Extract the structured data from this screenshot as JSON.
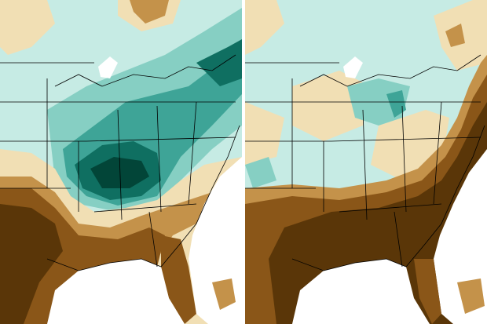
{
  "panels": [
    {
      "id": "left",
      "pattern": "wet-north-dry-south"
    },
    {
      "id": "right",
      "pattern": "dry-southeast"
    }
  ],
  "color_scale": {
    "very_dry": "#5a3608",
    "dry": "#8a5618",
    "moderately_dry": "#c4924a",
    "slightly_dry": "#f1dfb4",
    "neutral": "#ffffff",
    "slightly_wet": "#c6ebe4",
    "moderately_wet": "#86cfc3",
    "wet": "#3ea497",
    "very_wet": "#0f6f61",
    "extremely_wet": "#024538"
  },
  "boundary_color": "#000000"
}
